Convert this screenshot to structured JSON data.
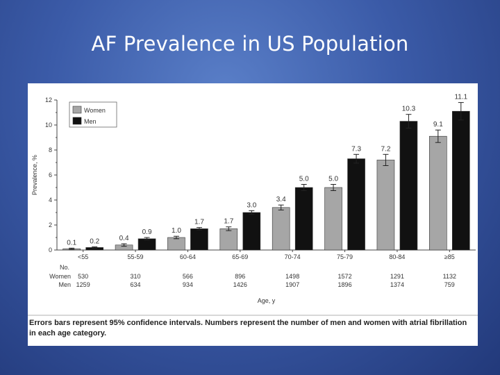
{
  "slide": {
    "title": "AF Prevalence in US Population"
  },
  "caption": "Errors bars represent 95% confidence intervals. Numbers represent the number of men and women with atrial fibrillation in each age category.",
  "counts_table": {
    "header": "No.",
    "rows": [
      {
        "label": "Women",
        "values": [
          "530",
          "310",
          "566",
          "896",
          "1498",
          "1572",
          "1291",
          "1132"
        ]
      },
      {
        "label": "Men",
        "values": [
          "1259",
          "634",
          "934",
          "1426",
          "1907",
          "1896",
          "1374",
          "759"
        ]
      }
    ]
  },
  "chart_data": {
    "type": "bar",
    "title": "",
    "xlabel": "Age, y",
    "ylabel": "Prevalence, %",
    "ylim": [
      0,
      12
    ],
    "yticks": [
      "0",
      "2",
      "4",
      "6",
      "8",
      "10",
      "12"
    ],
    "categories": [
      "<55",
      "55-59",
      "60-64",
      "65-69",
      "70-74",
      "75-79",
      "80-84",
      "≥85"
    ],
    "legend": {
      "position": "top-left",
      "entries": [
        "Women",
        "Men"
      ]
    },
    "series": [
      {
        "name": "Women",
        "color": "#a6a6a6",
        "values": [
          0.1,
          0.4,
          1.0,
          1.7,
          3.4,
          5.0,
          7.2,
          9.1
        ],
        "labels": [
          "0.1",
          "0.4",
          "1.0",
          "1.7",
          "3.4",
          "5.0",
          "7.2",
          "9.1"
        ],
        "errors": [
          0.05,
          0.1,
          0.1,
          0.15,
          0.2,
          0.25,
          0.45,
          0.5
        ]
      },
      {
        "name": "Men",
        "color": "#111111",
        "values": [
          0.2,
          0.9,
          1.7,
          3.0,
          5.0,
          7.3,
          10.3,
          11.1
        ],
        "labels": [
          "0.2",
          "0.9",
          "1.7",
          "3.0",
          "5.0",
          "7.3",
          "10.3",
          "11.1"
        ],
        "errors": [
          0.05,
          0.1,
          0.1,
          0.15,
          0.25,
          0.35,
          0.55,
          0.7
        ]
      }
    ]
  }
}
